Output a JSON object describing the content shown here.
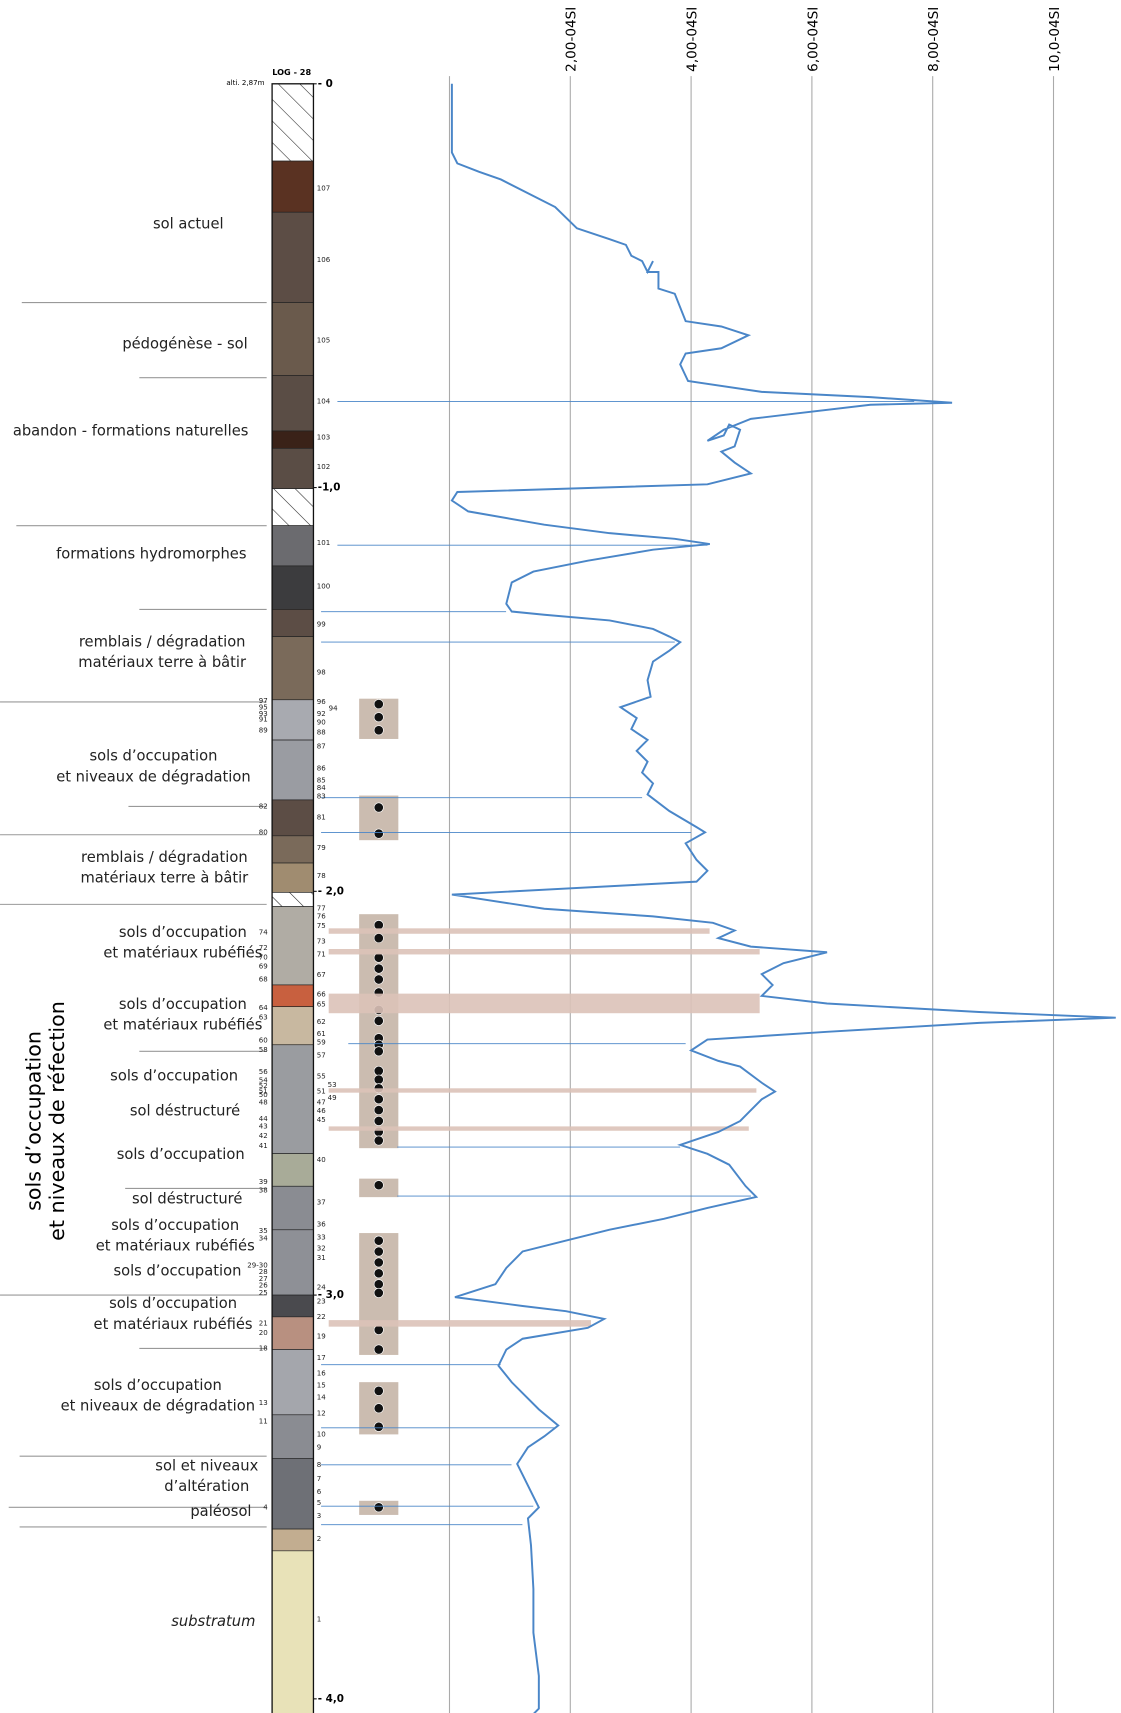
{
  "log": {
    "title": "LOG - 28",
    "altitude": "alti. 2,87m",
    "units_right": [
      "107",
      "106",
      "105",
      "104",
      "103",
      "102",
      "101",
      "100",
      "99",
      "98",
      "96",
      "94",
      "92",
      "90",
      "88",
      "87",
      "86",
      "85",
      "84",
      "83",
      "81",
      "79",
      "78",
      "77",
      "76",
      "75",
      "73",
      "71",
      "67",
      "66",
      "65",
      "62",
      "61",
      "59",
      "57",
      "55",
      "53",
      "51",
      "49",
      "47",
      "46",
      "45",
      "40",
      "37",
      "36",
      "33",
      "32",
      "31",
      "24",
      "23",
      "22",
      "19",
      "17",
      "16",
      "15",
      "14",
      "12",
      "10",
      "9",
      "8",
      "7",
      "6",
      "5",
      "3",
      "2",
      "1"
    ],
    "units_left": [
      "97",
      "95",
      "93",
      "91",
      "89",
      "82",
      "80",
      "74",
      "72",
      "70",
      "69",
      "68",
      "64",
      "63",
      "60",
      "58",
      "56",
      "54",
      "52",
      "51",
      "50",
      "48",
      "44",
      "43",
      "42",
      "41",
      "39",
      "38",
      "35",
      "34",
      "29-30",
      "28",
      "27",
      "26",
      "25",
      "21",
      "20",
      "18",
      "13",
      "11",
      "4"
    ],
    "phases": [
      [
        "sol actuel"
      ],
      [
        "pédogénèse - sol"
      ],
      [
        "abandon - formations naturelles"
      ],
      [
        "formations hydromorphes"
      ],
      [
        "remblais / dégradation",
        "matériaux terre à bâtir"
      ],
      [
        "sols d’occupation",
        "et niveaux de dégradation"
      ],
      [
        "remblais / dégradation",
        "matériaux terre à bâtir"
      ],
      [
        "sols d’occupation",
        "et matériaux rubéfiés"
      ],
      [
        "sols d’occupation",
        "et matériaux rubéfiés"
      ],
      [
        "sols d’occupation"
      ],
      [
        "sol déstructuré"
      ],
      [
        "sols d’occupation"
      ],
      [
        "sol déstructuré"
      ],
      [
        "sols d’occupation",
        "et matériaux rubéfiés"
      ],
      [
        "sols d’occupation"
      ],
      [
        "sols d’occupation",
        "et matériaux rubéfiés"
      ],
      [
        "sols d’occupation",
        "et niveaux de dégradation"
      ],
      [
        "sol et niveaux",
        "d’altération"
      ],
      [
        "paléosol"
      ],
      [
        "substratum"
      ]
    ],
    "group_label": [
      "sols d’occupation",
      "et niveaux de réfection"
    ]
  },
  "chart_data": {
    "type": "line",
    "color": "#4a86c8",
    "xlim": [
      0,
      11.1
    ],
    "xticks": [
      {
        "value": 2,
        "label": "2,00-04SI"
      },
      {
        "value": 4,
        "label": "4,00-04SI"
      },
      {
        "value": 6,
        "label": "6,00-04SI"
      },
      {
        "value": 8,
        "label": "8,00-04SI"
      },
      {
        "value": 10,
        "label": "10,0-04SI"
      }
    ],
    "ylim": [
      0,
      -4.1
    ],
    "yticks": [
      {
        "value": 0,
        "label": "- 0"
      },
      {
        "value": -1,
        "label": "-1,0"
      },
      {
        "value": -2,
        "label": "- 2,0"
      },
      {
        "value": -3,
        "label": "- 3,0"
      },
      {
        "value": -4,
        "label": "- 4,0"
      }
    ],
    "grid": true,
    "x": [
      0.04,
      0.04,
      0.13,
      0.49,
      0.85,
      1.39,
      1.75,
      2.11,
      2.65,
      2.92,
      3.01,
      3.19,
      3.28,
      3.37,
      3.28,
      3.46,
      3.46,
      3.73,
      3.91,
      4.5,
      4.95,
      4.5,
      3.91,
      3.82,
      3.95,
      5.17,
      6.97,
      8.32,
      6.97,
      5.71,
      4.99,
      4.54,
      4.27,
      4.54,
      4.63,
      4.81,
      4.72,
      4.5,
      4.72,
      4.99,
      4.27,
      0.13,
      0.04,
      0.31,
      1.57,
      2.65,
      3.73,
      4.31,
      3.37,
      2.29,
      1.39,
      1.03,
      0.94,
      1.03,
      1.57,
      2.65,
      3.37,
      3.64,
      3.82,
      3.64,
      3.37,
      3.28,
      3.33,
      2.83,
      3.1,
      3.01,
      3.28,
      3.1,
      3.28,
      3.19,
      3.37,
      3.28,
      3.64,
      4.09,
      4.23,
      3.91,
      4.09,
      4.27,
      4.09,
      0.04,
      1.57,
      3.37,
      4.36,
      4.72,
      4.45,
      4.99,
      6.25,
      5.53,
      5.17,
      5.35,
      5.17,
      6.25,
      8.77,
      11.03,
      8.77,
      6.25,
      4.27,
      4.0,
      4.45,
      4.81,
      5.17,
      5.39,
      5.17,
      4.99,
      4.81,
      4.45,
      3.82,
      4.27,
      4.63,
      4.9,
      5.08,
      4.27,
      3.55,
      2.65,
      1.93,
      1.21,
      0.94,
      0.76,
      0.09,
      1.21,
      1.93,
      2.56,
      2.29,
      1.21,
      0.94,
      0.81,
      1.03,
      1.48,
      1.8,
      1.57,
      1.3,
      1.12,
      1.21,
      1.39,
      1.48,
      1.3,
      1.35,
      1.39,
      1.39,
      1.48,
      1.48,
      1.21,
      1.03
    ],
    "values": [
      0,
      -0.17,
      -0.197,
      -0.218,
      -0.237,
      -0.278,
      -0.305,
      -0.358,
      -0.385,
      -0.399,
      -0.426,
      -0.439,
      -0.466,
      -0.439,
      -0.466,
      -0.466,
      -0.507,
      -0.52,
      -0.588,
      -0.601,
      -0.623,
      -0.655,
      -0.668,
      -0.695,
      -0.736,
      -0.763,
      -0.776,
      -0.79,
      -0.795,
      -0.817,
      -0.83,
      -0.857,
      -0.884,
      -0.871,
      -0.844,
      -0.857,
      -0.898,
      -0.911,
      -0.938,
      -0.965,
      -0.992,
      -1.011,
      -1.032,
      -1.059,
      -1.092,
      -1.113,
      -1.127,
      -1.14,
      -1.154,
      -1.181,
      -1.208,
      -1.235,
      -1.288,
      -1.307,
      -1.315,
      -1.329,
      -1.35,
      -1.369,
      -1.383,
      -1.404,
      -1.431,
      -1.477,
      -1.518,
      -1.544,
      -1.571,
      -1.598,
      -1.625,
      -1.652,
      -1.679,
      -1.706,
      -1.733,
      -1.76,
      -1.801,
      -1.841,
      -1.854,
      -1.881,
      -1.922,
      -1.949,
      -1.976,
      -2.008,
      -2.043,
      -2.062,
      -2.078,
      -2.097,
      -2.116,
      -2.137,
      -2.151,
      -2.178,
      -2.205,
      -2.232,
      -2.259,
      -2.278,
      -2.299,
      -2.313,
      -2.326,
      -2.348,
      -2.367,
      -2.394,
      -2.42,
      -2.434,
      -2.474,
      -2.496,
      -2.515,
      -2.542,
      -2.569,
      -2.596,
      -2.628,
      -2.65,
      -2.677,
      -2.73,
      -2.757,
      -2.784,
      -2.811,
      -2.838,
      -2.865,
      -2.892,
      -2.933,
      -2.973,
      -3.005,
      -3.027,
      -3.04,
      -3.059,
      -3.081,
      -3.108,
      -3.135,
      -3.175,
      -3.216,
      -3.283,
      -3.323,
      -3.35,
      -3.377,
      -3.418,
      -3.445,
      -3.499,
      -3.526,
      -3.553,
      -3.62,
      -3.728,
      -3.836,
      -3.943,
      -4.024,
      -4.065,
      -4.078
    ]
  }
}
